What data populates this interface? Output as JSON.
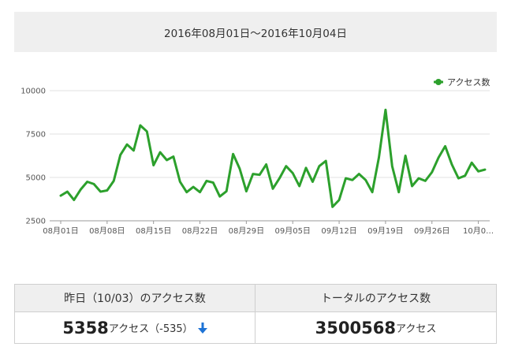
{
  "header": {
    "date_range": "2016年08月01日〜2016年10月04日"
  },
  "chart_data": {
    "type": "line",
    "series": [
      {
        "name": "アクセス数",
        "color": "#2ca02c",
        "values": [
          3950,
          4180,
          3700,
          4300,
          4750,
          4620,
          4180,
          4250,
          4800,
          6300,
          6900,
          6550,
          8000,
          7650,
          5700,
          6450,
          6000,
          6200,
          4750,
          4150,
          4450,
          4150,
          4800,
          4700,
          3900,
          4200,
          6350,
          5500,
          4200,
          5200,
          5150,
          5750,
          4350,
          4950,
          5650,
          5250,
          4500,
          5550,
          4750,
          5650,
          5950,
          3300,
          3700,
          4950,
          4850,
          5200,
          4850,
          4150,
          6150,
          8900,
          5650,
          4150,
          6250,
          4500,
          4950,
          4800,
          5300,
          6150,
          6800,
          5750,
          4950,
          5100,
          5850,
          5350,
          5450
        ]
      }
    ],
    "x_labels": [
      "08月01日",
      "08月08日",
      "08月15日",
      "08月22日",
      "08月29日",
      "09月05日",
      "09月12日",
      "09月19日",
      "09月26日",
      "10月0…"
    ],
    "y_ticks": [
      2500,
      5000,
      7500,
      10000
    ],
    "ylim": [
      2500,
      10000
    ],
    "legend_position": "top-right",
    "grid": true
  },
  "stats": {
    "yesterday_header": "昨日（10/03）のアクセス数",
    "yesterday_count": "5358",
    "yesterday_unit": "アクセス（-535）",
    "arrow_icon": "arrow-down-icon",
    "total_header": "トータルのアクセス数",
    "total_count": "3500568",
    "total_unit": "アクセス"
  }
}
